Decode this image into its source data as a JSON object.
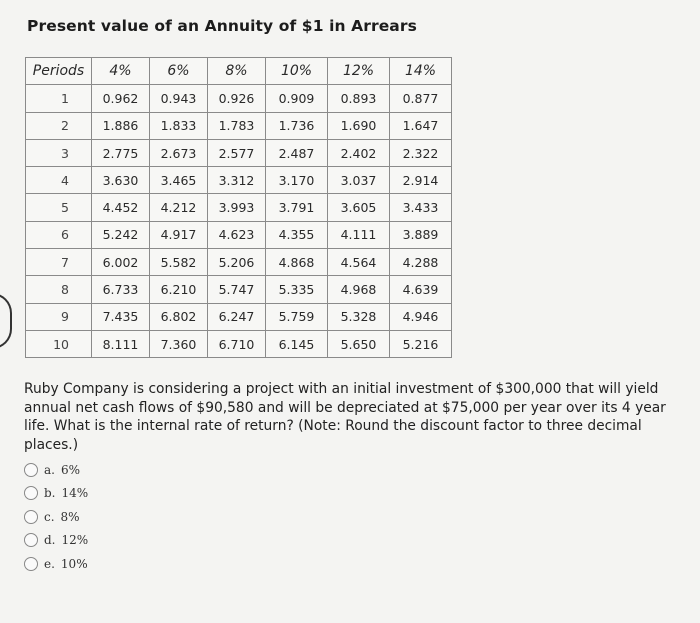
{
  "title": "Present value of an Annuity of $1 in Arrears",
  "table": {
    "headers": [
      "Periods",
      "4%",
      "6%",
      "8%",
      "10%",
      "12%",
      "14%"
    ],
    "rows": [
      [
        "1",
        "0.962",
        "0.943",
        "0.926",
        "0.909",
        "0.893",
        "0.877"
      ],
      [
        "2",
        "1.886",
        "1.833",
        "1.783",
        "1.736",
        "1.690",
        "1.647"
      ],
      [
        "3",
        "2.775",
        "2.673",
        "2.577",
        "2.487",
        "2.402",
        "2.322"
      ],
      [
        "4",
        "3.630",
        "3.465",
        "3.312",
        "3.170",
        "3.037",
        "2.914"
      ],
      [
        "5",
        "4.452",
        "4.212",
        "3.993",
        "3.791",
        "3.605",
        "3.433"
      ],
      [
        "6",
        "5.242",
        "4.917",
        "4.623",
        "4.355",
        "4.111",
        "3.889"
      ],
      [
        "7",
        "6.002",
        "5.582",
        "5.206",
        "4.868",
        "4.564",
        "4.288"
      ],
      [
        "8",
        "6.733",
        "6.210",
        "5.747",
        "5.335",
        "4.968",
        "4.639"
      ],
      [
        "9",
        "7.435",
        "6.802",
        "6.247",
        "5.759",
        "5.328",
        "4.946"
      ],
      [
        "10",
        "8.111",
        "7.360",
        "6.710",
        "6.145",
        "5.650",
        "5.216"
      ]
    ]
  },
  "question": "Ruby Company is considering a project with an initial investment of $300,000 that will yield annual net cash flows of $90,580 and will be depreciated at $75,000 per year over its 4 year life. What is the internal rate of return? (Note: Round the discount factor to three decimal places.)",
  "options": [
    {
      "letter": "a.",
      "text": "6%"
    },
    {
      "letter": "b.",
      "text": "14%"
    },
    {
      "letter": "c.",
      "text": "8%"
    },
    {
      "letter": "d.",
      "text": "12%"
    },
    {
      "letter": "e.",
      "text": "10%"
    }
  ]
}
